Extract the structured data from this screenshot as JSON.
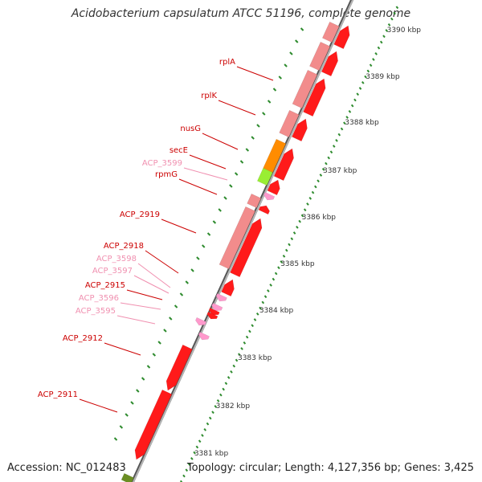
{
  "title": "Acidobacterium capsulatum ATCC 51196, complete genome",
  "footer": {
    "accession": "Accession: NC_012483",
    "topology": "Topology: circular; Length: 4,127,356 bp; Genes: 3,425"
  },
  "colors": {
    "backbone": "#8c8c8c",
    "tick": "#2e8b2e",
    "gene_red": "#ff1a1a",
    "gene_pink": "#f28c8c",
    "gene_orange": "#ff8c00",
    "gene_green": "#99ee33",
    "gene_lightpink": "#ff99cc",
    "label_red": "#cc0000",
    "label_pink": "#f090b0"
  },
  "scale_labels": [
    "3390 kbp",
    "3389 kbp",
    "3388 kbp",
    "3387 kbp",
    "3386 kbp",
    "3385 kbp",
    "3384 kbp",
    "3383 kbp",
    "3382 kbp",
    "3381 kbp"
  ],
  "gene_labels": [
    {
      "text": "rplA",
      "color": "label_red"
    },
    {
      "text": "rplK",
      "color": "label_red"
    },
    {
      "text": "nusG",
      "color": "label_red"
    },
    {
      "text": "secE",
      "color": "label_red"
    },
    {
      "text": "ACP_3599",
      "color": "label_pink"
    },
    {
      "text": "rpmG",
      "color": "label_red"
    },
    {
      "text": "ACP_2919",
      "color": "label_red"
    },
    {
      "text": "ACP_2918",
      "color": "label_red"
    },
    {
      "text": "ACP_3598",
      "color": "label_pink"
    },
    {
      "text": "ACP_3597",
      "color": "label_pink"
    },
    {
      "text": "ACP_2915",
      "color": "label_red"
    },
    {
      "text": "ACP_3596",
      "color": "label_pink"
    },
    {
      "text": "ACP_3595",
      "color": "label_pink"
    },
    {
      "text": "ACP_2912",
      "color": "label_red"
    },
    {
      "text": "ACP_2911",
      "color": "label_red"
    }
  ]
}
